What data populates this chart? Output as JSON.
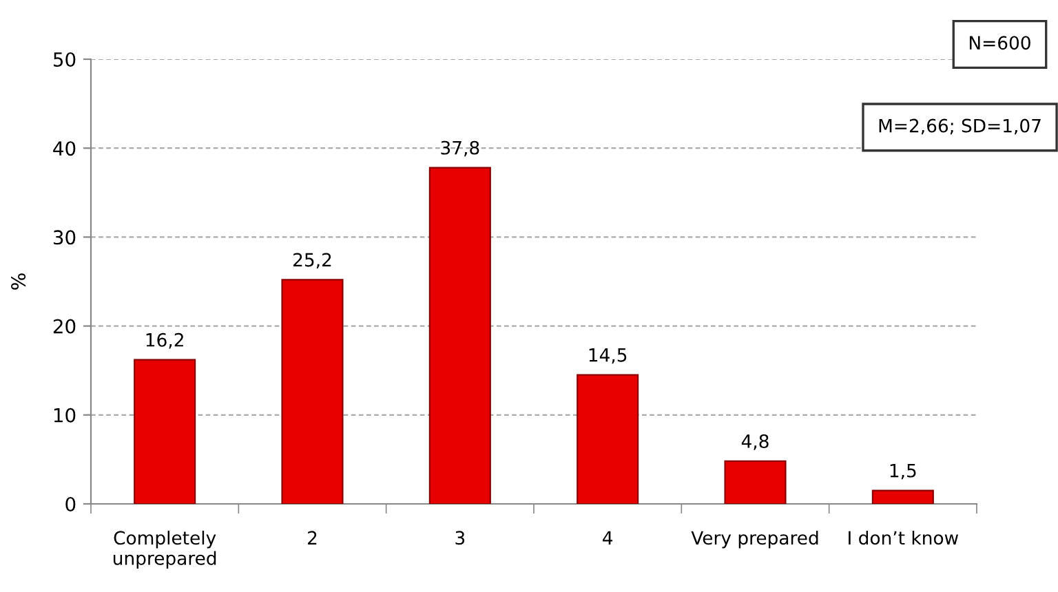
{
  "chart_data": {
    "type": "bar",
    "ylabel": "%",
    "categories": [
      "Completely\nunprepared",
      "2",
      "3",
      "4",
      "Very prepared",
      "I don’t know"
    ],
    "values": [
      16.2,
      25.2,
      37.8,
      14.5,
      4.8,
      1.5
    ],
    "value_labels": [
      "16,2",
      "25,2",
      "37,8",
      "14,5",
      "4,8",
      "1,5"
    ],
    "color": "#e80000",
    "ylim": [
      0,
      50
    ],
    "yticks": [
      0,
      10,
      20,
      30,
      40,
      50
    ],
    "grid": "y",
    "legend": false,
    "annotations": [
      "N=600",
      "M=2,66; SD=1,07"
    ]
  }
}
